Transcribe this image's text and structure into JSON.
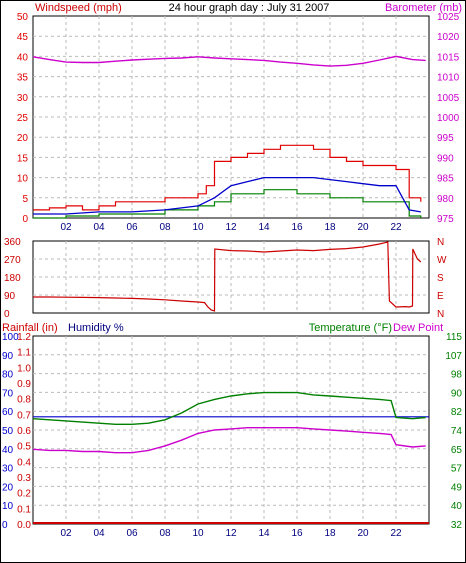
{
  "colors": {
    "windspeed": "#e00000",
    "windspeed_avg": "#0000cc",
    "gust_green": "#008000",
    "barometer": "#cc00cc",
    "direction": "#cc0000",
    "rainfall": "#cc0000",
    "humidity": "#0000cc",
    "temperature": "#008000",
    "dewpoint": "#cc00cc",
    "grid": "#bbbbbb",
    "axis_text_blue": "#000080"
  },
  "chart_data": [
    {
      "type": "line",
      "title": "24 hour graph day : July 31 2007",
      "left_axis_label": "Windspeed (mph)",
      "right_axis_label": "Barometer (mb)",
      "x_ticks": [
        "02",
        "04",
        "06",
        "08",
        "10",
        "12",
        "14",
        "16",
        "18",
        "20",
        "22"
      ],
      "x_range": [
        0,
        24
      ],
      "left_ticks": [
        "0",
        "5",
        "10",
        "15",
        "20",
        "25",
        "30",
        "35",
        "40",
        "45",
        "50"
      ],
      "left_range": [
        0,
        50
      ],
      "right_ticks": [
        "975",
        "980",
        "985",
        "990",
        "995",
        "1000",
        "1005",
        "1010",
        "1015",
        "1020",
        "1025"
      ],
      "right_range": [
        975,
        1025
      ],
      "grid": true,
      "series": [
        {
          "axis": "right",
          "x": [
            0,
            1,
            2,
            3,
            4,
            5,
            6,
            7,
            8,
            9,
            10,
            11,
            12,
            13,
            14,
            15,
            16,
            17,
            18,
            19,
            20,
            21,
            22,
            23,
            23.8
          ],
          "y": [
            1014.9,
            1014.2,
            1013.6,
            1013.5,
            1013.5,
            1013.8,
            1014.1,
            1014.3,
            1014.5,
            1014.6,
            1014.9,
            1014.6,
            1014.4,
            1014.2,
            1014.0,
            1013.6,
            1013.3,
            1012.9,
            1012.6,
            1012.8,
            1013.3,
            1014.1,
            1015.0,
            1014.2,
            1014.0
          ]
        },
        {
          "axis": "left",
          "x": [
            0,
            1,
            2,
            3,
            4,
            5,
            6,
            7,
            8,
            9,
            10,
            10.5,
            11,
            12,
            13,
            14,
            15,
            16,
            17,
            18,
            19,
            20,
            21,
            22,
            22.8,
            23.5
          ],
          "y": [
            2,
            2.5,
            3,
            2,
            3,
            4,
            4,
            4,
            5,
            5,
            6,
            8,
            14,
            15,
            16,
            17,
            18,
            18,
            17,
            15,
            14,
            13,
            13,
            12,
            5,
            4
          ]
        },
        {
          "axis": "left",
          "x": [
            0,
            2,
            4,
            6,
            8,
            10,
            11,
            12,
            13,
            14,
            15,
            16,
            17,
            18,
            19,
            20,
            21,
            22,
            22.8,
            23.5
          ],
          "y": [
            1,
            1,
            1.5,
            1.5,
            2,
            3,
            5,
            8,
            9,
            10,
            10,
            10,
            10,
            9.5,
            9,
            8.5,
            8,
            8,
            2,
            1.5
          ]
        },
        {
          "axis": "left",
          "x": [
            0,
            2,
            4,
            6,
            8,
            10,
            11,
            12,
            13,
            14,
            15,
            16,
            17,
            18,
            19,
            20,
            21,
            22,
            22.8,
            23.5
          ],
          "y": [
            0,
            0.5,
            1,
            1,
            2,
            3,
            4,
            6,
            6,
            7,
            7,
            6,
            6,
            5,
            5,
            4,
            4,
            4,
            0.5,
            0
          ]
        }
      ]
    },
    {
      "type": "line",
      "left_ticks": [
        "0",
        "90",
        "180",
        "270",
        "360"
      ],
      "left_range": [
        0,
        360
      ],
      "right_ticks": [
        "N",
        "W",
        "S",
        "E",
        "N"
      ],
      "x_range": [
        0,
        24
      ],
      "grid": true,
      "series": [
        {
          "axis": "left",
          "x": [
            0,
            1,
            2,
            3,
            4,
            5,
            6,
            7,
            8,
            9,
            10,
            10.4,
            10.6,
            10.8,
            11.0,
            11.02,
            12,
            13,
            14,
            15,
            16,
            17,
            18,
            19,
            20,
            21,
            21.5,
            21.6,
            22,
            22.6,
            22.8,
            23.0,
            23.02,
            23.3,
            23.5
          ],
          "y": [
            80,
            80,
            79,
            78,
            77,
            75,
            73,
            70,
            66,
            60,
            55,
            52,
            30,
            15,
            10,
            320,
            312,
            310,
            305,
            310,
            315,
            312,
            318,
            322,
            330,
            345,
            355,
            60,
            30,
            32,
            30,
            35,
            320,
            270,
            255
          ]
        }
      ]
    },
    {
      "type": "line",
      "left_axis_label": "Rainfall (in)",
      "left_axis_label_2": "Humidity %",
      "right_axis_label": "Temperature (°F)",
      "right_axis_label_2": "Dew Point",
      "x_ticks": [
        "02",
        "04",
        "06",
        "08",
        "10",
        "12",
        "14",
        "16",
        "18",
        "20",
        "22"
      ],
      "x_range": [
        0,
        24
      ],
      "rain_ticks": [
        "0.0",
        "0.1",
        "0.2",
        "0.3",
        "0.4",
        "0.5",
        "0.6",
        "0.7",
        "0.8",
        "0.9",
        "1.0",
        "1.1",
        "1.2"
      ],
      "rain_range": [
        0,
        1.2
      ],
      "humidity_ticks": [
        "0",
        "10",
        "20",
        "30",
        "40",
        "50",
        "60",
        "70",
        "80",
        "90",
        "100"
      ],
      "humidity_range": [
        0,
        100
      ],
      "right_ticks": [
        "32",
        "40",
        "49",
        "57",
        "65",
        "74",
        "82",
        "90",
        "98",
        "107",
        "115"
      ],
      "right_range": [
        32,
        115
      ],
      "grid": true,
      "series": [
        {
          "name": "Humidity",
          "axis": "humidity",
          "x": [
            0,
            24
          ],
          "y": [
            57,
            57
          ]
        },
        {
          "name": "Temperature",
          "axis": "right",
          "x": [
            0,
            1,
            2,
            3,
            4,
            5,
            6,
            7,
            8,
            9,
            10,
            11,
            12,
            13,
            14,
            15,
            16,
            17,
            18,
            19,
            20,
            21,
            21.7,
            22,
            23,
            23.8
          ],
          "y": [
            78.5,
            78,
            77.5,
            77,
            76.5,
            76,
            76,
            76.5,
            78,
            81,
            85,
            87,
            88.5,
            89.5,
            90,
            90,
            90,
            89,
            88.5,
            88,
            87.5,
            87,
            86.5,
            79,
            78.5,
            79
          ]
        },
        {
          "name": "Dew Point",
          "axis": "right",
          "x": [
            0,
            1,
            2,
            3,
            4,
            5,
            6,
            7,
            8,
            9,
            10,
            11,
            12,
            13,
            14,
            15,
            16,
            17,
            18,
            19,
            20,
            21,
            21.7,
            22,
            23,
            23.8
          ],
          "y": [
            65,
            64.5,
            64.5,
            64,
            64,
            63.5,
            63.5,
            64.5,
            66.5,
            69,
            72,
            73.5,
            74,
            74.5,
            74.5,
            74.5,
            74.5,
            74,
            73.5,
            73,
            72.5,
            72,
            71.5,
            67,
            66,
            66.5
          ]
        },
        {
          "name": "Rainfall",
          "axis": "rain",
          "x": [
            0,
            24
          ],
          "y": [
            0,
            0
          ]
        }
      ]
    }
  ]
}
